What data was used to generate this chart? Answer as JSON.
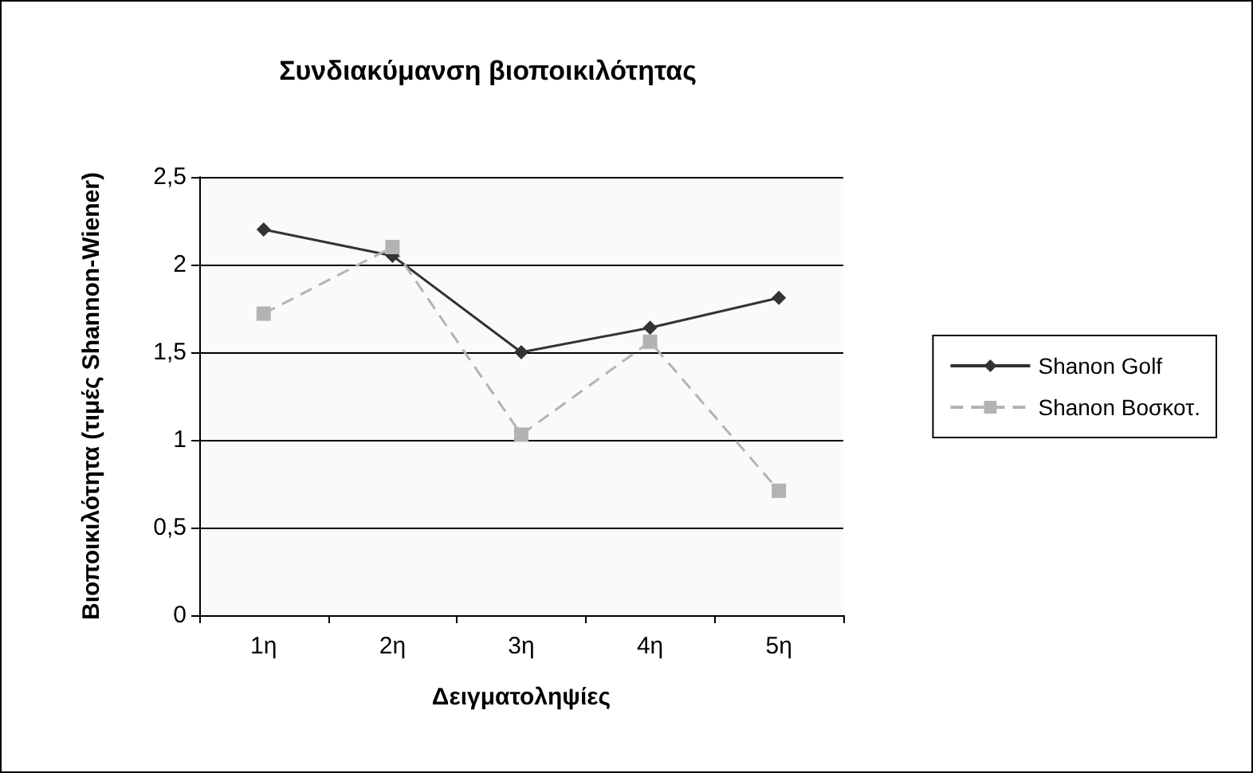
{
  "chart_data": {
    "type": "line",
    "title": "Συνδιακύμανση βιοποικιλότητας",
    "xlabel": "Δειγματοληψίες",
    "ylabel": "Βιοποικιλότητα (τιμές Shannon-Wiener)",
    "categories": [
      "1η",
      "2η",
      "3η",
      "4η",
      "5η"
    ],
    "series": [
      {
        "name": "Shanon Golf",
        "color": "#333333",
        "marker": "diamond",
        "line_style": "solid",
        "values": [
          2.2,
          2.05,
          1.5,
          1.64,
          1.81
        ]
      },
      {
        "name": "Shanon Βοσκοτ.",
        "color": "#b3b3b3",
        "marker": "square",
        "line_style": "dashed",
        "values": [
          1.72,
          2.1,
          1.03,
          1.56,
          0.71
        ]
      }
    ],
    "ylim": [
      0,
      2.5
    ],
    "yticks": [
      0,
      {
        "value": 0.5,
        "label": "0,5"
      },
      1,
      {
        "value": 1.5,
        "label": "1,5"
      },
      2,
      {
        "value": 2.5,
        "label": "2,5"
      }
    ],
    "grid": "y",
    "legend": "right"
  }
}
